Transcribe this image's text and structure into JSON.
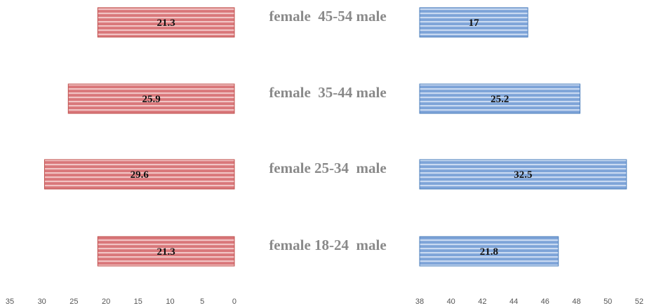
{
  "colors": {
    "female": "#d9777a",
    "female_stripe": "#f1c4c4",
    "female_edge": "#c0504d",
    "male": "#7ea4d8",
    "male_stripe": "#c9daf1",
    "male_edge": "#4f81bd",
    "category_text": "#8a8a8a"
  },
  "chart_data": {
    "type": "bar",
    "orientation": "horizontal",
    "categories": [
      "female  45-54 male",
      "female  35-44 male",
      "female 25-34  male",
      "female 18-24  male"
    ],
    "series": [
      {
        "values": [
          21.3,
          25.9,
          29.6,
          21.3
        ]
      },
      {
        "values": [
          17,
          25.2,
          32.5,
          21.8
        ]
      }
    ],
    "left_axis": {
      "range": [
        35,
        0
      ],
      "ticks": [
        "35",
        "30",
        "25",
        "20",
        "15",
        "10",
        "5",
        "0"
      ]
    },
    "right_axis": {
      "range": [
        38,
        52
      ],
      "ticks": [
        "38",
        "40",
        "42",
        "44",
        "46",
        "48",
        "50",
        "52"
      ]
    },
    "data_labels": true,
    "grid": false,
    "legend": "none"
  }
}
